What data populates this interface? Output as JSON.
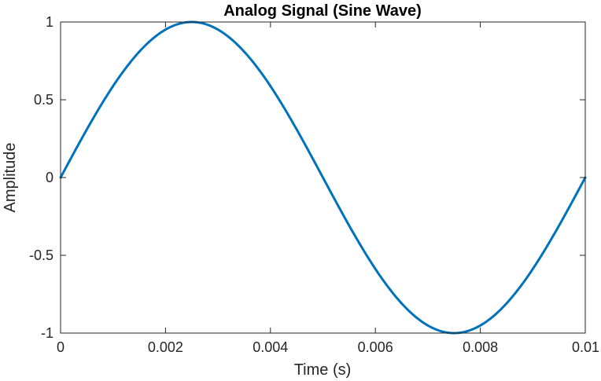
{
  "chart_data": {
    "type": "line",
    "title": "Analog Signal (Sine Wave)",
    "xlabel": "Time (s)",
    "ylabel": "Amplitude",
    "xlim": [
      0,
      0.01
    ],
    "ylim": [
      -1,
      1
    ],
    "xticks": [
      0,
      0.002,
      0.004,
      0.006,
      0.008,
      0.01
    ],
    "xtick_labels": [
      "0",
      "0.002",
      "0.004",
      "0.006",
      "0.008",
      "0.01"
    ],
    "yticks": [
      -1,
      -0.5,
      0,
      0.5,
      1
    ],
    "ytick_labels": [
      "-1",
      "-0.5",
      "0",
      "0.5",
      "1"
    ],
    "grid": false,
    "legend": "none",
    "series": [
      {
        "color": "#0072BD",
        "function": "sin(2*pi*100*t)",
        "frequency_hz": 100,
        "amplitude": 1,
        "x": [
          0,
          0.0005,
          0.001,
          0.0015,
          0.002,
          0.0025,
          0.003,
          0.0035,
          0.004,
          0.0045,
          0.005,
          0.0055,
          0.006,
          0.0065,
          0.007,
          0.0075,
          0.008,
          0.0085,
          0.009,
          0.0095,
          0.01
        ],
        "y": [
          0,
          0.309,
          0.588,
          0.809,
          0.951,
          1,
          0.951,
          0.809,
          0.588,
          0.309,
          0,
          -0.309,
          -0.588,
          -0.809,
          -0.951,
          -1,
          -0.951,
          -0.809,
          -0.588,
          -0.309,
          0
        ]
      }
    ]
  }
}
